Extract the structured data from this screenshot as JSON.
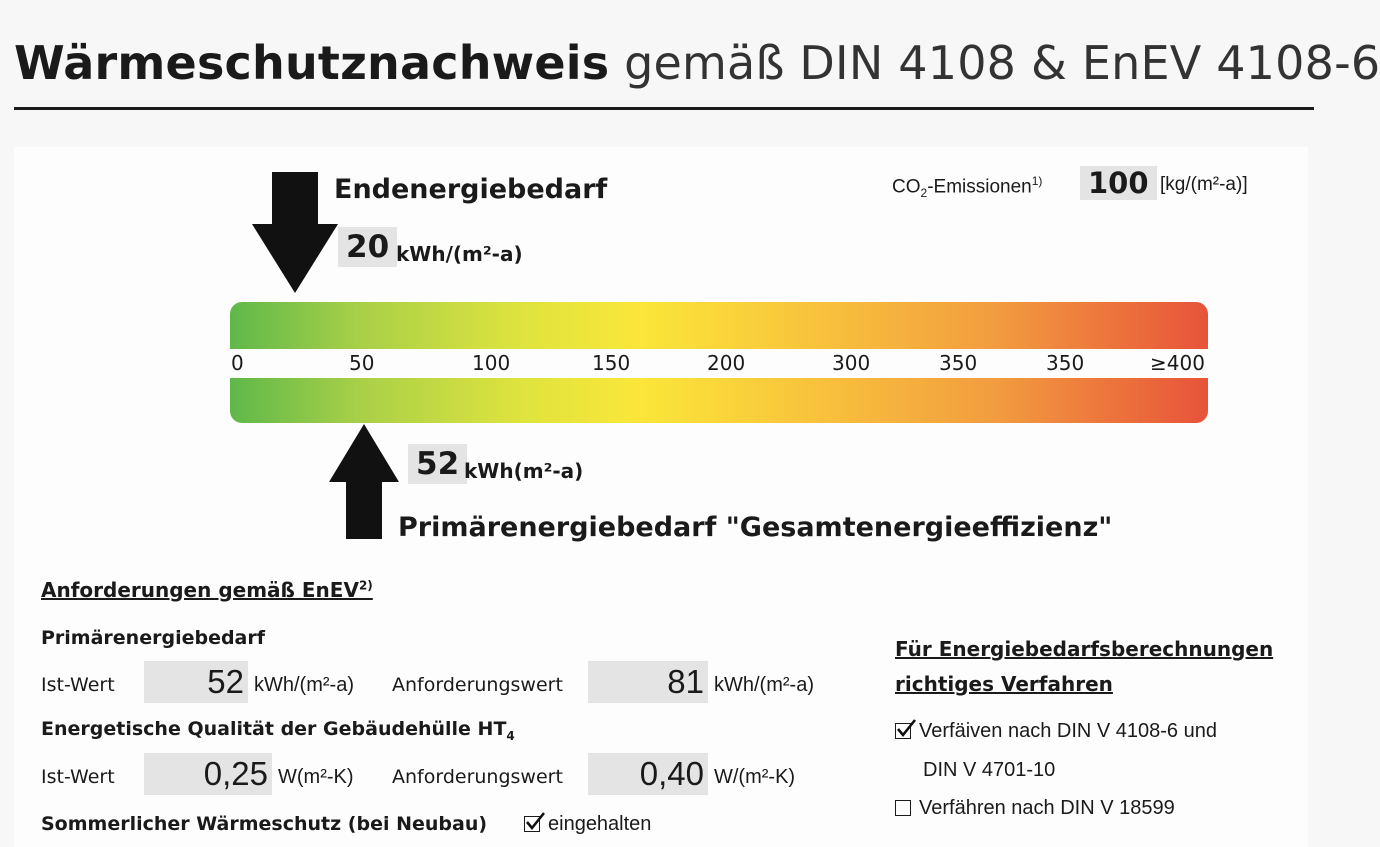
{
  "header": {
    "title_bold": "Wärmeschutznachweis",
    "title_rest": "gemäß DIN 4108 & EnEV 4108-6"
  },
  "final_energy": {
    "label": "Endenergiebedarf",
    "value": "20",
    "unit": "kWh/(m²-a)"
  },
  "co2": {
    "label_prefix": "CO",
    "label_sub": "2",
    "label_suffix": "-Emissionen",
    "footnote": "1)",
    "value": "100",
    "unit": "[kg/(m²-a)]"
  },
  "scale": {
    "ticks": [
      "0",
      "50",
      "100",
      "150",
      "200",
      "300",
      "350",
      "350",
      "≥400"
    ],
    "colors": [
      "#5fb84a",
      "#a8cf48",
      "#dfe43e",
      "#fbe639",
      "#f8c23c",
      "#f29d3f",
      "#e8533a"
    ]
  },
  "primary_energy": {
    "value": "52",
    "unit": "kWh(m²-a)",
    "label": "Primärenergiebedarf \"Gesamtenergieeffizienz\""
  },
  "requirements": {
    "heading": "Anforderungen gemäß EnEV",
    "heading_footnote": "2)",
    "primary": {
      "title": "Primärenergiebedarf",
      "actual_label": "Ist-Wert",
      "actual_value": "52",
      "actual_unit": "kWh/(m²-a)",
      "required_label": "Anforderungswert",
      "required_value": "81",
      "required_unit": "kWh/(m²-a)"
    },
    "envelope": {
      "title": "Energetische Qualität der Gebäudehülle HT",
      "title_sub": "4",
      "actual_label": "Ist-Wert",
      "actual_value": "0,25",
      "actual_unit": "W(m²-K)",
      "required_label": "Anforderungswert",
      "required_value": "0,40",
      "required_unit": "W/(m²-K)"
    },
    "summer": {
      "title": "Sommerlicher Wärmeschutz (bei Neubau)",
      "status_label": "eingehalten",
      "checked": true
    }
  },
  "procedure": {
    "heading_line1": "Für Energiebedarfsberechnungen",
    "heading_line2": "richtiges Verfahren",
    "options": [
      {
        "line1": "Verfäiven nach DIN V 4108-6 und",
        "line2": "DIN V 4701-10",
        "checked": true
      },
      {
        "line1": "Verfähren nach DIN V 18599",
        "checked": false
      }
    ]
  }
}
